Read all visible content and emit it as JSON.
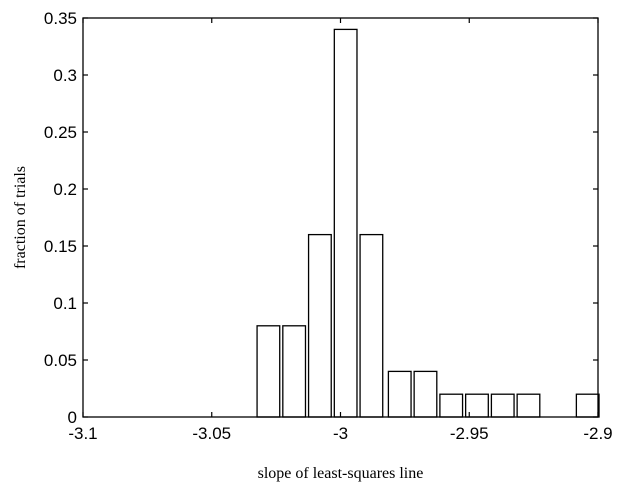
{
  "chart_data": {
    "type": "bar",
    "title": "",
    "xlabel": "slope of least-squares line",
    "ylabel": "fraction of trials",
    "xlim": [
      -3.1,
      -2.9
    ],
    "ylim": [
      0,
      0.35
    ],
    "grid": false,
    "xticks": [
      -3.1,
      -3.05,
      -3.0,
      -2.95,
      -2.9
    ],
    "xtick_labels": [
      "-3.1",
      "-3.05",
      "-3",
      "-2.95",
      "-2.9"
    ],
    "yticks": [
      0,
      0.05,
      0.1,
      0.15,
      0.2,
      0.25,
      0.3,
      0.35
    ],
    "ytick_labels": [
      "0",
      "0.05",
      "0.1",
      "0.15",
      "0.2",
      "0.25",
      "0.3",
      "0.35"
    ],
    "bin_width": 0.01,
    "bars": [
      {
        "x": -3.028,
        "value": 0.08
      },
      {
        "x": -3.018,
        "value": 0.08
      },
      {
        "x": -3.008,
        "value": 0.16
      },
      {
        "x": -2.998,
        "value": 0.34
      },
      {
        "x": -2.988,
        "value": 0.16
      },
      {
        "x": -2.977,
        "value": 0.04
      },
      {
        "x": -2.967,
        "value": 0.04
      },
      {
        "x": -2.957,
        "value": 0.02
      },
      {
        "x": -2.947,
        "value": 0.02
      },
      {
        "x": -2.937,
        "value": 0.02
      },
      {
        "x": -2.927,
        "value": 0.02
      },
      {
        "x": -2.904,
        "value": 0.02
      }
    ]
  }
}
